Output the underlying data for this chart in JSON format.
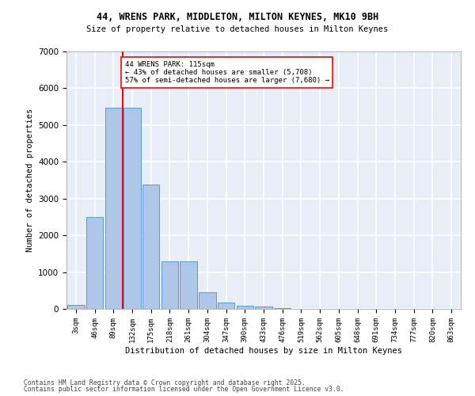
{
  "title1": "44, WRENS PARK, MIDDLETON, MILTON KEYNES, MK10 9BH",
  "title2": "Size of property relative to detached houses in Milton Keynes",
  "xlabel": "Distribution of detached houses by size in Milton Keynes",
  "ylabel": "Number of detached properties",
  "categories": [
    "3sqm",
    "46sqm",
    "89sqm",
    "132sqm",
    "175sqm",
    "218sqm",
    "261sqm",
    "304sqm",
    "347sqm",
    "390sqm",
    "433sqm",
    "476sqm",
    "519sqm",
    "562sqm",
    "605sqm",
    "648sqm",
    "691sqm",
    "734sqm",
    "777sqm",
    "820sqm",
    "863sqm"
  ],
  "values": [
    100,
    2500,
    5480,
    5480,
    3380,
    1300,
    1300,
    460,
    175,
    80,
    55,
    20,
    0,
    0,
    0,
    0,
    0,
    0,
    0,
    0,
    0
  ],
  "bar_color": "#aec6e8",
  "bar_edge_color": "#5b9bd5",
  "vline_color": "red",
  "annotation_text": "44 WRENS PARK: 115sqm\n← 43% of detached houses are smaller (5,708)\n57% of semi-detached houses are larger (7,680) →",
  "annotation_box_color": "white",
  "annotation_box_edge": "red",
  "ylim": [
    0,
    7000
  ],
  "yticks": [
    0,
    1000,
    2000,
    3000,
    4000,
    5000,
    6000,
    7000
  ],
  "bg_color": "#e8eef8",
  "grid_color": "white",
  "footer1": "Contains HM Land Registry data © Crown copyright and database right 2025.",
  "footer2": "Contains public sector information licensed under the Open Government Licence v3.0."
}
